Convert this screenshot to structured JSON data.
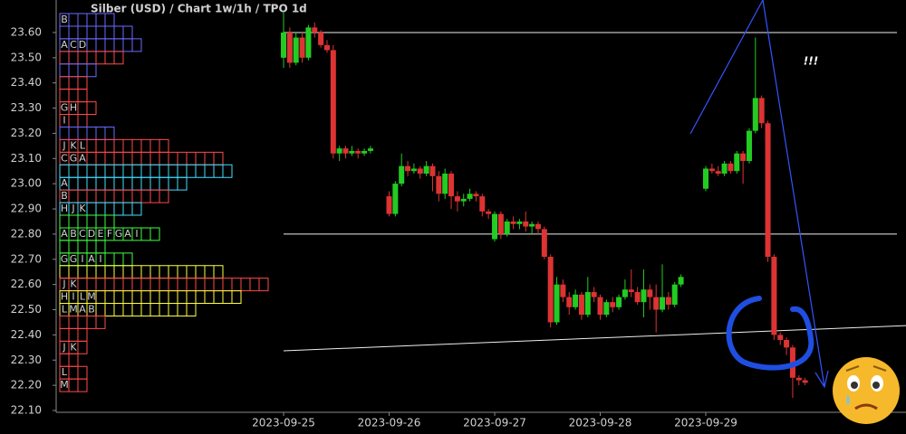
{
  "chart_data": {
    "type": "candlestick",
    "title": "Silber (USD) /  Chart 1w/1h / TPO 1d",
    "annotation": "!!!",
    "ylim": [
      22.1,
      23.729
    ],
    "yticks": [
      {
        "value": 22.1,
        "label": "22.10"
      },
      {
        "value": 22.2,
        "label": "22.20"
      },
      {
        "value": 22.3,
        "label": "22.30"
      },
      {
        "value": 22.4,
        "label": "22.40"
      },
      {
        "value": 22.5,
        "label": "22.50"
      },
      {
        "value": 22.6,
        "label": "22.60"
      },
      {
        "value": 22.7,
        "label": "22.70"
      },
      {
        "value": 22.8,
        "label": "22.80"
      },
      {
        "value": 22.9,
        "label": "22.90"
      },
      {
        "value": 23.0,
        "label": "23.00"
      },
      {
        "value": 23.1,
        "label": "23.10"
      },
      {
        "value": 23.2,
        "label": "23.20"
      },
      {
        "value": 23.3,
        "label": "23.30"
      },
      {
        "value": 23.4,
        "label": "23.40"
      },
      {
        "value": 23.5,
        "label": "23.50"
      },
      {
        "value": 23.6,
        "label": "23.60"
      }
    ],
    "up_color": "#22cc22",
    "down_color": "#dd3333",
    "categories": [
      "2023-09-25",
      null,
      null,
      null,
      null,
      null,
      null,
      null,
      null,
      null,
      null,
      null,
      null,
      null,
      null,
      null,
      null,
      "2023-09-26",
      null,
      null,
      null,
      null,
      null,
      null,
      null,
      null,
      null,
      null,
      null,
      null,
      null,
      null,
      null,
      null,
      "2023-09-27",
      null,
      null,
      null,
      null,
      null,
      null,
      null,
      null,
      null,
      null,
      null,
      null,
      null,
      null,
      null,
      null,
      "2023-09-28",
      null,
      null,
      null,
      null,
      null,
      null,
      null,
      null,
      null,
      null,
      null,
      null,
      null,
      null,
      null,
      null,
      "2023-09-29",
      null,
      null,
      null,
      null,
      null,
      null,
      null,
      null,
      null,
      null,
      null,
      null,
      null,
      null,
      null,
      null
    ],
    "open": [
      23.5,
      23.6,
      23.48,
      23.58,
      23.5,
      23.62,
      23.6,
      23.55,
      23.53,
      23.12,
      23.14,
      23.12,
      23.13,
      23.12,
      23.13,
      null,
      null,
      22.95,
      22.88,
      23.0,
      23.07,
      23.05,
      23.06,
      23.04,
      23.07,
      23.03,
      22.96,
      23.04,
      22.95,
      22.93,
      22.94,
      22.96,
      22.95,
      22.89,
      22.78,
      22.88,
      22.8,
      22.85,
      22.84,
      22.85,
      22.83,
      22.84,
      22.82,
      22.71,
      22.45,
      22.6,
      22.55,
      22.51,
      22.56,
      22.48,
      22.57,
      22.55,
      22.48,
      22.53,
      22.51,
      22.55,
      22.58,
      22.57,
      22.53,
      22.58,
      22.55,
      22.5,
      22.55,
      22.52,
      22.6,
      null,
      null,
      null,
      22.98,
      23.06,
      23.05,
      23.04,
      23.08,
      23.05,
      23.12,
      23.09,
      23.21,
      23.34,
      23.24,
      22.71,
      22.4,
      22.38,
      22.35,
      22.23,
      22.22
    ],
    "high": [
      23.68,
      23.62,
      23.6,
      23.6,
      23.63,
      23.64,
      23.61,
      23.57,
      23.55,
      23.15,
      23.15,
      23.15,
      23.14,
      23.14,
      23.15,
      null,
      null,
      22.97,
      23.01,
      23.12,
      23.09,
      23.08,
      23.07,
      23.09,
      23.08,
      23.05,
      23.06,
      23.05,
      22.97,
      22.96,
      22.98,
      22.97,
      22.96,
      22.9,
      22.89,
      22.89,
      22.86,
      22.87,
      22.86,
      22.89,
      22.85,
      22.85,
      22.83,
      22.72,
      22.63,
      22.62,
      22.57,
      22.58,
      22.57,
      22.63,
      22.59,
      22.56,
      22.54,
      22.55,
      22.56,
      22.62,
      22.66,
      22.59,
      22.66,
      22.6,
      22.6,
      22.68,
      22.57,
      22.61,
      22.64,
      null,
      null,
      null,
      23.07,
      23.08,
      23.07,
      23.09,
      23.09,
      23.13,
      23.13,
      23.22,
      23.58,
      23.35,
      23.25,
      22.72,
      22.41,
      22.39,
      22.36,
      22.24,
      22.23
    ],
    "low": [
      23.46,
      23.46,
      23.47,
      23.48,
      23.49,
      23.58,
      23.54,
      23.52,
      23.1,
      23.09,
      23.1,
      23.11,
      23.1,
      23.11,
      23.12,
      null,
      null,
      22.87,
      22.87,
      22.99,
      23.03,
      23.04,
      23.02,
      23.03,
      22.97,
      22.93,
      22.94,
      22.9,
      22.89,
      22.91,
      22.93,
      22.93,
      22.87,
      22.86,
      22.77,
      22.78,
      22.79,
      22.82,
      22.82,
      22.81,
      22.8,
      22.8,
      22.7,
      22.43,
      22.44,
      22.53,
      22.48,
      22.5,
      22.46,
      22.47,
      22.53,
      22.46,
      22.47,
      22.49,
      22.5,
      22.54,
      22.55,
      22.52,
      22.47,
      22.5,
      22.41,
      22.49,
      22.5,
      22.51,
      22.59,
      null,
      null,
      null,
      22.97,
      23.04,
      23.03,
      23.03,
      23.04,
      23.04,
      23.0,
      23.08,
      23.2,
      23.22,
      22.69,
      22.38,
      22.36,
      22.32,
      22.15,
      22.2,
      22.2
    ],
    "close": [
      23.6,
      23.48,
      23.58,
      23.5,
      23.62,
      23.6,
      23.55,
      23.53,
      23.12,
      23.14,
      23.12,
      23.13,
      23.12,
      23.13,
      23.14,
      null,
      null,
      22.88,
      23.0,
      23.07,
      23.05,
      23.06,
      23.04,
      23.07,
      23.03,
      22.96,
      23.04,
      22.95,
      22.93,
      22.94,
      22.96,
      22.95,
      22.89,
      22.88,
      22.88,
      22.8,
      22.85,
      22.84,
      22.85,
      22.83,
      22.84,
      22.82,
      22.71,
      22.45,
      22.6,
      22.55,
      22.51,
      22.56,
      22.48,
      22.57,
      22.55,
      22.48,
      22.53,
      22.51,
      22.55,
      22.58,
      22.57,
      22.53,
      22.58,
      22.55,
      22.5,
      22.55,
      22.52,
      22.6,
      22.63,
      null,
      null,
      null,
      23.06,
      23.05,
      23.04,
      23.08,
      23.05,
      23.12,
      23.09,
      23.21,
      23.34,
      23.24,
      22.71,
      22.4,
      22.38,
      22.35,
      22.23,
      22.22,
      22.21
    ],
    "hlines": [
      23.6,
      22.8
    ],
    "trendline": [
      22.337,
      22.437
    ],
    "tpo": [
      {
        "price": 23.65,
        "count": 6,
        "letters": [
          "B"
        ],
        "color": "#6a6aff"
      },
      {
        "price": 23.6,
        "count": 8,
        "letters": [],
        "color": "#6a6aff"
      },
      {
        "price": 23.55,
        "count": 9,
        "letters": [
          "A",
          "C",
          "D"
        ],
        "color": "#6a6aff"
      },
      {
        "price": 23.5,
        "count": 7,
        "letters": [],
        "color": "#ff4a4a"
      },
      {
        "price": 23.45,
        "count": 4,
        "letters": [],
        "color": "#6a6aff"
      },
      {
        "price": 23.4,
        "count": 3,
        "letters": [],
        "color": "#ff4a4a"
      },
      {
        "price": 23.35,
        "count": 3,
        "letters": [],
        "color": "#ff4a4a"
      },
      {
        "price": 23.3,
        "count": 4,
        "letters": [
          "G",
          "H"
        ],
        "color": "#ff4a4a"
      },
      {
        "price": 23.25,
        "count": 3,
        "letters": [
          "I"
        ],
        "color": "#ff4a4a"
      },
      {
        "price": 23.2,
        "count": 6,
        "letters": [],
        "color": "#6a6aff"
      },
      {
        "price": 23.15,
        "count": 12,
        "letters": [
          "J",
          "K",
          "L"
        ],
        "color": "#ff4a4a"
      },
      {
        "price": 23.1,
        "count": 18,
        "letters": [
          "C",
          "G",
          "A"
        ],
        "color": "#ff4a4a"
      },
      {
        "price": 23.05,
        "count": 19,
        "letters": [],
        "color": "#40e0ff"
      },
      {
        "price": 23.0,
        "count": 14,
        "letters": [
          "A"
        ],
        "color": "#40e0ff"
      },
      {
        "price": 22.95,
        "count": 12,
        "letters": [
          "B"
        ],
        "color": "#ff4a4a"
      },
      {
        "price": 22.9,
        "count": 9,
        "letters": [
          "H",
          "J",
          "K"
        ],
        "color": "#40e0ff"
      },
      {
        "price": 22.85,
        "count": 6,
        "letters": [],
        "color": "#40ff40"
      },
      {
        "price": 22.8,
        "count": 11,
        "letters": [
          "A",
          "B",
          "C",
          "D",
          "E",
          "F",
          "G",
          "A",
          "I"
        ],
        "color": "#40ff40"
      },
      {
        "price": 22.75,
        "count": 5,
        "letters": [],
        "color": "#40ff40"
      },
      {
        "price": 22.7,
        "count": 8,
        "letters": [
          "G",
          "G",
          "I",
          "A",
          "I"
        ],
        "color": "#40ff40"
      },
      {
        "price": 22.65,
        "count": 18,
        "letters": [],
        "color": "#ffff40"
      },
      {
        "price": 22.6,
        "count": 23,
        "letters": [
          "J",
          "K"
        ],
        "color": "#ff4a4a"
      },
      {
        "price": 22.55,
        "count": 20,
        "letters": [
          "H",
          "I",
          "L",
          "M"
        ],
        "color": "#ffff40"
      },
      {
        "price": 22.5,
        "count": 15,
        "letters": [
          "L",
          "M",
          "A",
          "B"
        ],
        "color": "#ffff40"
      },
      {
        "price": 22.45,
        "count": 5,
        "letters": [],
        "color": "#ff4a4a"
      },
      {
        "price": 22.4,
        "count": 3,
        "letters": [],
        "color": "#ff4a4a"
      },
      {
        "price": 22.35,
        "count": 3,
        "letters": [
          "J",
          "K"
        ],
        "color": "#ff4a4a"
      },
      {
        "price": 22.3,
        "count": 2,
        "letters": [],
        "color": "#ff4a4a"
      },
      {
        "price": 22.25,
        "count": 3,
        "letters": [
          "L"
        ],
        "color": "#ff4a4a"
      },
      {
        "price": 22.2,
        "count": 3,
        "letters": [
          "M"
        ],
        "color": "#ff4a4a"
      }
    ]
  }
}
